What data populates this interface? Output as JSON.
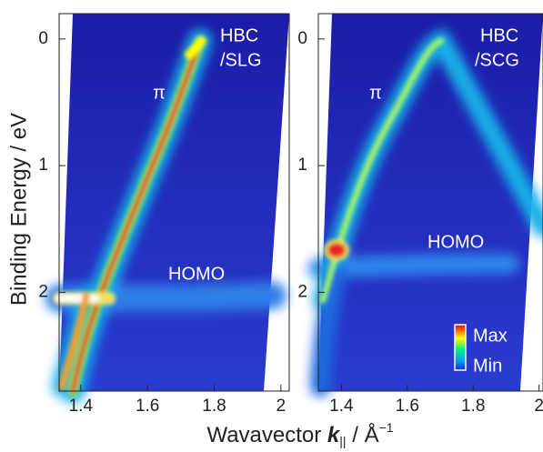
{
  "figure": {
    "ylabel": "Binding Energy / eV",
    "xlabel": {
      "text": "Wavavector",
      "symbol": "k",
      "subscript": "||",
      "unit": "/ Å",
      "exponent": "−1"
    },
    "colorbar": {
      "max": "Max",
      "min": "Min"
    }
  },
  "chart_data": [
    {
      "type": "heatmap",
      "xlim": [
        1.335,
        2.025
      ],
      "ylim": [
        -0.2,
        2.78
      ],
      "y_inverted": true,
      "xticks": [
        1.4,
        1.6,
        1.8,
        2
      ],
      "yticks": [
        0,
        1,
        2
      ],
      "annotations": [
        "HBC",
        "/SLG",
        "π",
        "HOMO"
      ]
    },
    {
      "type": "heatmap",
      "xlim": [
        1.33,
        2.012
      ],
      "ylim": [
        -0.2,
        2.78
      ],
      "y_inverted": true,
      "xticks": [
        1.4,
        1.6,
        1.8,
        2
      ],
      "yticks": [
        0,
        1,
        2
      ],
      "annotations": [
        "HBC",
        "/SCG",
        "π",
        "HOMO"
      ]
    }
  ]
}
